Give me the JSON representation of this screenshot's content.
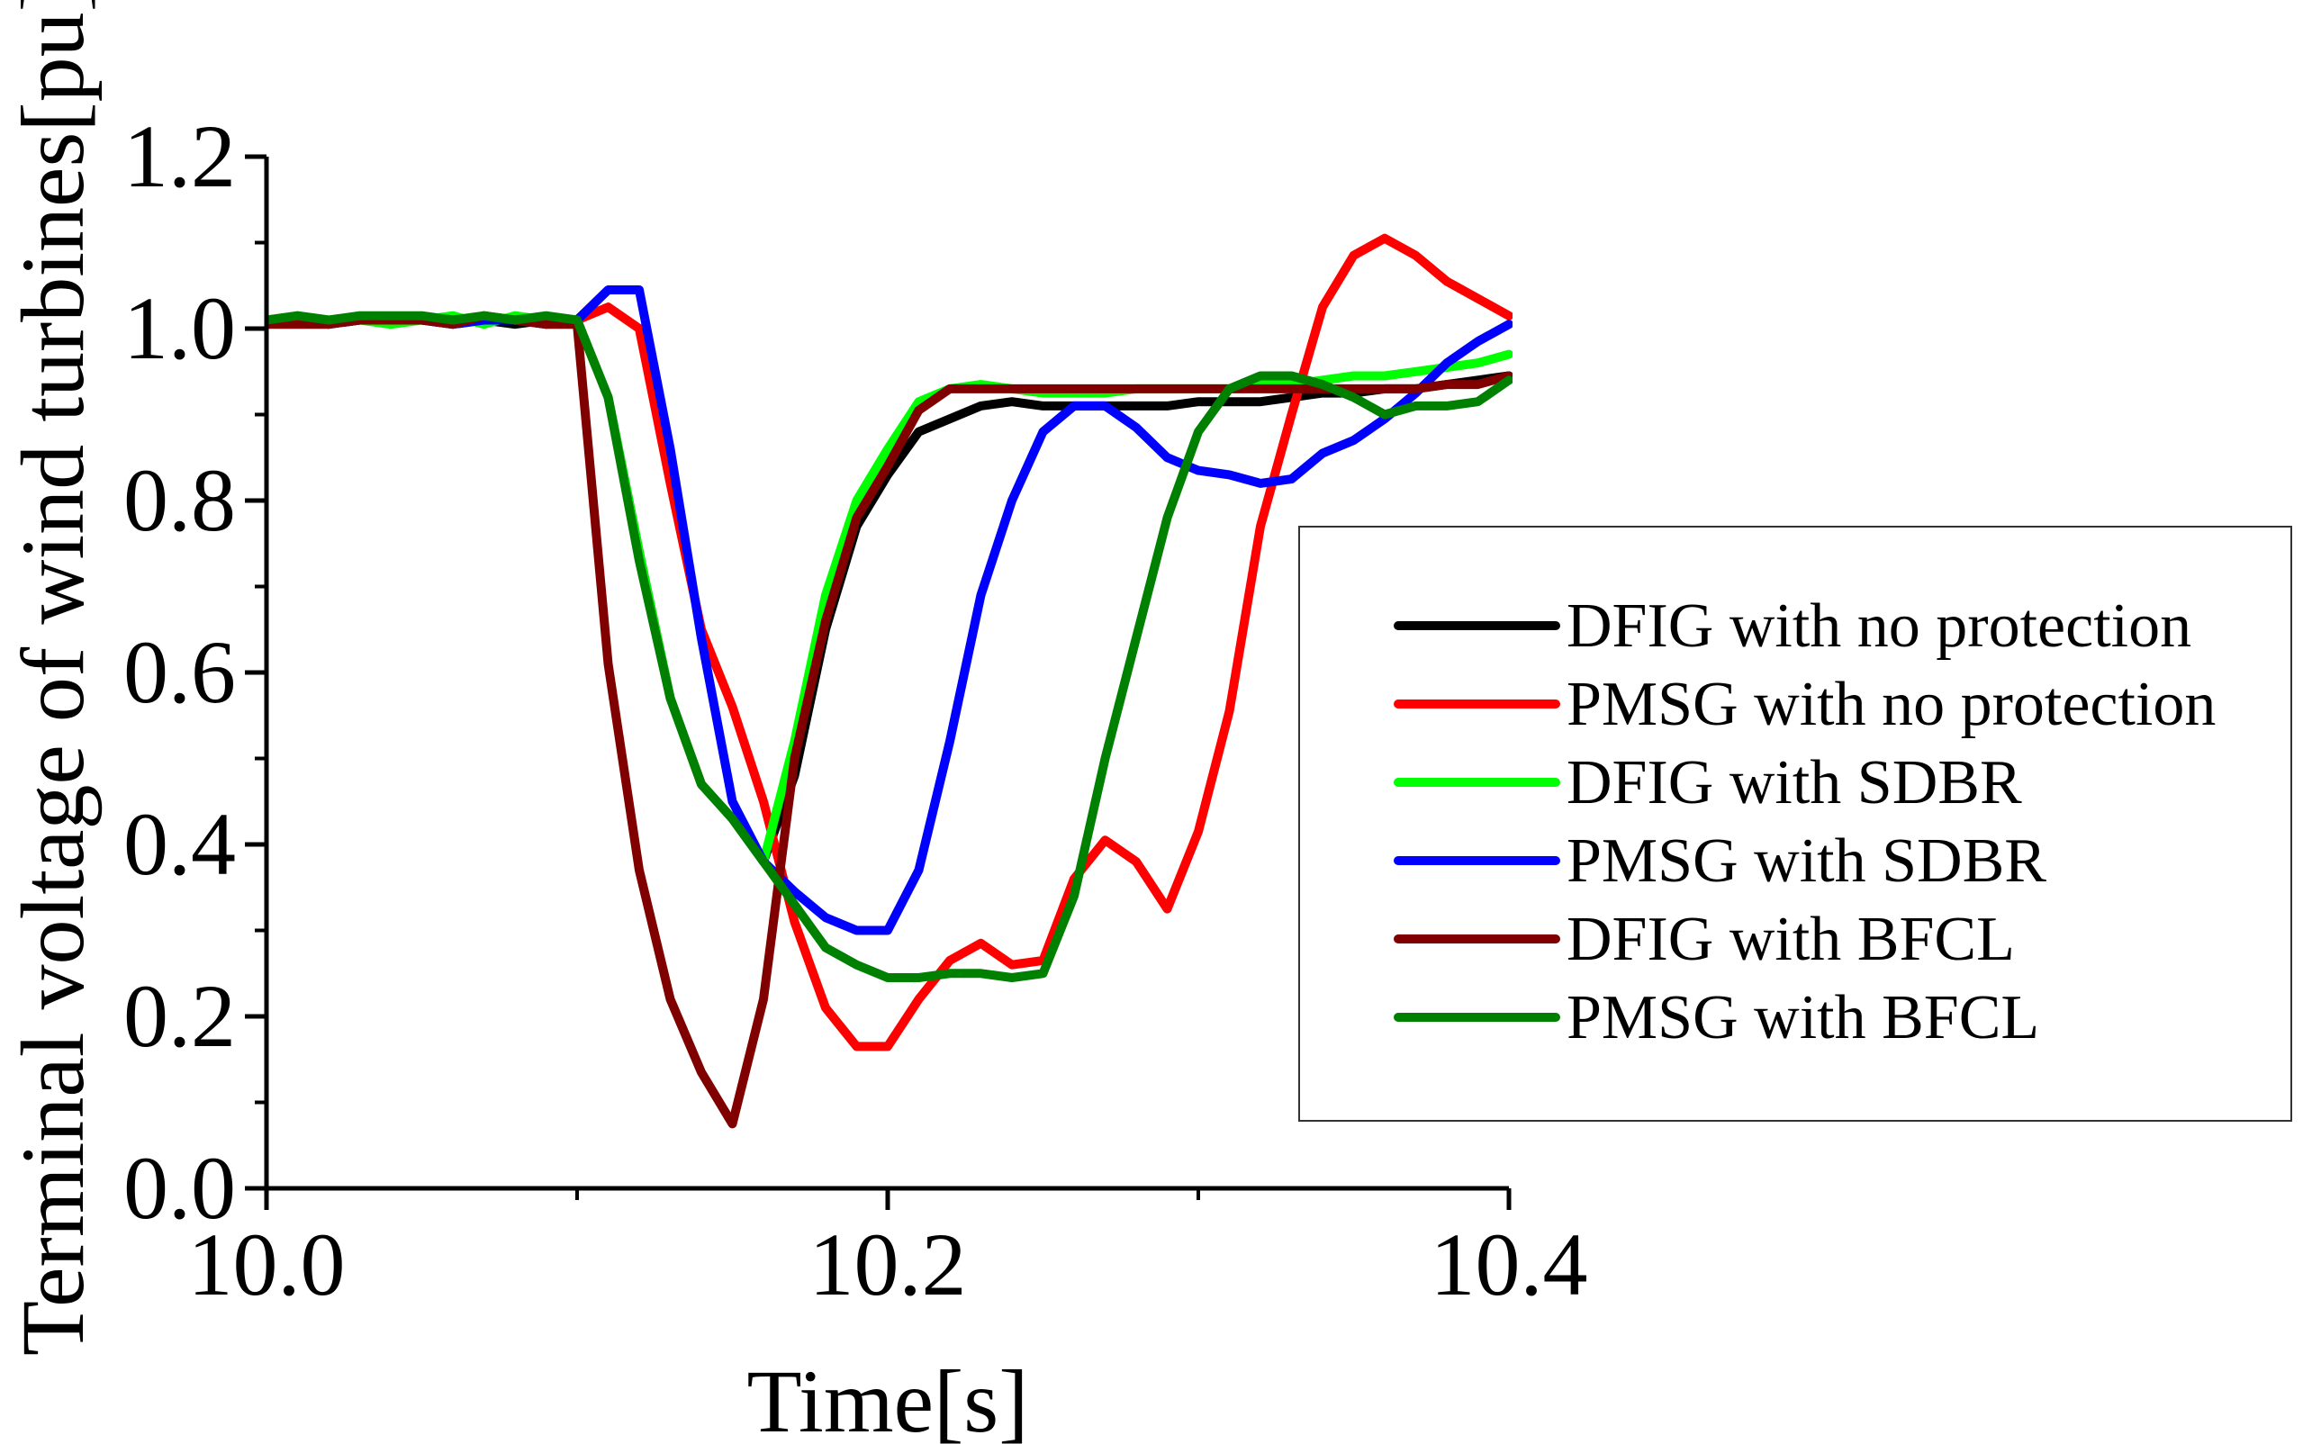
{
  "chart_data": {
    "type": "line",
    "title": "",
    "xlabel": "Time[s]",
    "ylabel": "Terminal voltage of wind turbines[pu]",
    "xlim": [
      10.0,
      10.4
    ],
    "ylim": [
      0.0,
      1.2
    ],
    "xticks": [
      10.0,
      10.2,
      10.4
    ],
    "xtick_labels": [
      "10.0",
      "10.2",
      "10.4"
    ],
    "yticks": [
      0.0,
      0.2,
      0.4,
      0.6,
      0.8,
      1.0,
      1.2
    ],
    "ytick_labels": [
      "0.0",
      "0.2",
      "0.4",
      "0.6",
      "0.8",
      "1.0",
      "1.2"
    ],
    "grid": false,
    "legend_position": "right",
    "series": [
      {
        "name": "DFIG with no protection",
        "color": "#000000",
        "x": [
          10.0,
          10.01,
          10.02,
          10.03,
          10.04,
          10.05,
          10.06,
          10.07,
          10.08,
          10.09,
          10.1,
          10.11,
          10.12,
          10.13,
          10.14,
          10.15,
          10.16,
          10.17,
          10.18,
          10.19,
          10.2,
          10.21,
          10.22,
          10.23,
          10.24,
          10.25,
          10.26,
          10.27,
          10.28,
          10.29,
          10.3,
          10.31,
          10.32,
          10.33,
          10.34,
          10.35,
          10.36,
          10.37,
          10.38,
          10.39,
          10.4
        ],
        "y": [
          1.005,
          1.01,
          1.005,
          1.01,
          1.01,
          1.01,
          1.005,
          1.01,
          1.005,
          1.01,
          1.01,
          0.92,
          0.74,
          0.57,
          0.47,
          0.43,
          0.38,
          0.48,
          0.65,
          0.77,
          0.83,
          0.88,
          0.895,
          0.91,
          0.915,
          0.91,
          0.91,
          0.91,
          0.91,
          0.91,
          0.915,
          0.915,
          0.915,
          0.92,
          0.925,
          0.925,
          0.93,
          0.93,
          0.935,
          0.94,
          0.945
        ]
      },
      {
        "name": "PMSG with no protection",
        "color": "#ff0000",
        "x": [
          10.0,
          10.01,
          10.02,
          10.03,
          10.04,
          10.05,
          10.06,
          10.07,
          10.08,
          10.09,
          10.1,
          10.11,
          10.12,
          10.13,
          10.14,
          10.15,
          10.16,
          10.17,
          10.18,
          10.19,
          10.2,
          10.21,
          10.22,
          10.23,
          10.24,
          10.25,
          10.26,
          10.27,
          10.28,
          10.29,
          10.3,
          10.31,
          10.32,
          10.33,
          10.34,
          10.35,
          10.36,
          10.37,
          10.38,
          10.39,
          10.4
        ],
        "y": [
          1.005,
          1.01,
          1.01,
          1.01,
          1.01,
          1.01,
          1.01,
          1.01,
          1.01,
          1.005,
          1.01,
          1.025,
          1.0,
          0.82,
          0.65,
          0.56,
          0.45,
          0.31,
          0.21,
          0.165,
          0.165,
          0.22,
          0.265,
          0.285,
          0.26,
          0.265,
          0.36,
          0.405,
          0.38,
          0.325,
          0.415,
          0.555,
          0.77,
          0.9,
          1.025,
          1.085,
          1.105,
          1.085,
          1.055,
          1.035,
          1.015
        ]
      },
      {
        "name": "DFIG with SDBR",
        "color": "#00ff00",
        "x": [
          10.0,
          10.01,
          10.02,
          10.03,
          10.04,
          10.05,
          10.06,
          10.07,
          10.08,
          10.09,
          10.1,
          10.11,
          10.12,
          10.13,
          10.14,
          10.15,
          10.16,
          10.17,
          10.18,
          10.19,
          10.2,
          10.21,
          10.22,
          10.23,
          10.24,
          10.25,
          10.26,
          10.27,
          10.28,
          10.29,
          10.3,
          10.31,
          10.32,
          10.33,
          10.34,
          10.35,
          10.36,
          10.37,
          10.38,
          10.39,
          10.4
        ],
        "y": [
          1.01,
          1.015,
          1.01,
          1.01,
          1.005,
          1.01,
          1.015,
          1.005,
          1.015,
          1.01,
          1.01,
          0.92,
          0.74,
          0.57,
          0.47,
          0.43,
          0.38,
          0.52,
          0.69,
          0.8,
          0.86,
          0.915,
          0.93,
          0.935,
          0.93,
          0.925,
          0.925,
          0.925,
          0.93,
          0.93,
          0.93,
          0.93,
          0.935,
          0.935,
          0.94,
          0.945,
          0.945,
          0.95,
          0.955,
          0.96,
          0.97
        ]
      },
      {
        "name": "PMSG with SDBR",
        "color": "#0000ff",
        "x": [
          10.0,
          10.01,
          10.02,
          10.03,
          10.04,
          10.05,
          10.06,
          10.07,
          10.08,
          10.09,
          10.1,
          10.11,
          10.12,
          10.13,
          10.14,
          10.15,
          10.16,
          10.17,
          10.18,
          10.19,
          10.2,
          10.21,
          10.22,
          10.23,
          10.24,
          10.25,
          10.26,
          10.27,
          10.28,
          10.29,
          10.3,
          10.31,
          10.32,
          10.33,
          10.34,
          10.35,
          10.36,
          10.37,
          10.38,
          10.39,
          10.4
        ],
        "y": [
          1.005,
          1.01,
          1.005,
          1.01,
          1.01,
          1.01,
          1.005,
          1.01,
          1.01,
          1.005,
          1.01,
          1.045,
          1.045,
          0.86,
          0.64,
          0.45,
          0.38,
          0.345,
          0.315,
          0.3,
          0.3,
          0.37,
          0.52,
          0.69,
          0.8,
          0.88,
          0.91,
          0.91,
          0.885,
          0.85,
          0.835,
          0.83,
          0.82,
          0.825,
          0.855,
          0.87,
          0.895,
          0.925,
          0.96,
          0.985,
          1.005
        ]
      },
      {
        "name": "DFIG with BFCL",
        "color": "#800000",
        "x": [
          10.0,
          10.01,
          10.02,
          10.03,
          10.04,
          10.05,
          10.06,
          10.07,
          10.08,
          10.09,
          10.1,
          10.11,
          10.12,
          10.13,
          10.14,
          10.15,
          10.16,
          10.17,
          10.18,
          10.19,
          10.2,
          10.21,
          10.22,
          10.23,
          10.24,
          10.25,
          10.26,
          10.27,
          10.28,
          10.29,
          10.3,
          10.31,
          10.32,
          10.33,
          10.34,
          10.35,
          10.36,
          10.37,
          10.38,
          10.39,
          10.4
        ],
        "y": [
          1.005,
          1.005,
          1.005,
          1.01,
          1.01,
          1.01,
          1.005,
          1.015,
          1.01,
          1.005,
          1.005,
          0.61,
          0.37,
          0.22,
          0.135,
          0.075,
          0.22,
          0.5,
          0.66,
          0.78,
          0.84,
          0.905,
          0.93,
          0.93,
          0.93,
          0.93,
          0.93,
          0.93,
          0.93,
          0.93,
          0.93,
          0.93,
          0.93,
          0.93,
          0.93,
          0.93,
          0.93,
          0.93,
          0.935,
          0.935,
          0.945
        ]
      },
      {
        "name": "PMSG with BFCL",
        "color": "#008000",
        "x": [
          10.0,
          10.01,
          10.02,
          10.03,
          10.04,
          10.05,
          10.06,
          10.07,
          10.08,
          10.09,
          10.1,
          10.11,
          10.12,
          10.13,
          10.14,
          10.15,
          10.16,
          10.17,
          10.18,
          10.19,
          10.2,
          10.21,
          10.22,
          10.23,
          10.24,
          10.25,
          10.26,
          10.27,
          10.28,
          10.29,
          10.3,
          10.31,
          10.32,
          10.33,
          10.34,
          10.35,
          10.36,
          10.37,
          10.38,
          10.39,
          10.4
        ],
        "y": [
          1.01,
          1.015,
          1.01,
          1.015,
          1.015,
          1.015,
          1.01,
          1.015,
          1.01,
          1.015,
          1.01,
          0.92,
          0.73,
          0.57,
          0.47,
          0.43,
          0.38,
          0.33,
          0.28,
          0.26,
          0.245,
          0.245,
          0.25,
          0.25,
          0.245,
          0.25,
          0.34,
          0.5,
          0.64,
          0.78,
          0.88,
          0.93,
          0.945,
          0.945,
          0.935,
          0.92,
          0.9,
          0.91,
          0.91,
          0.915,
          0.94
        ]
      }
    ]
  }
}
